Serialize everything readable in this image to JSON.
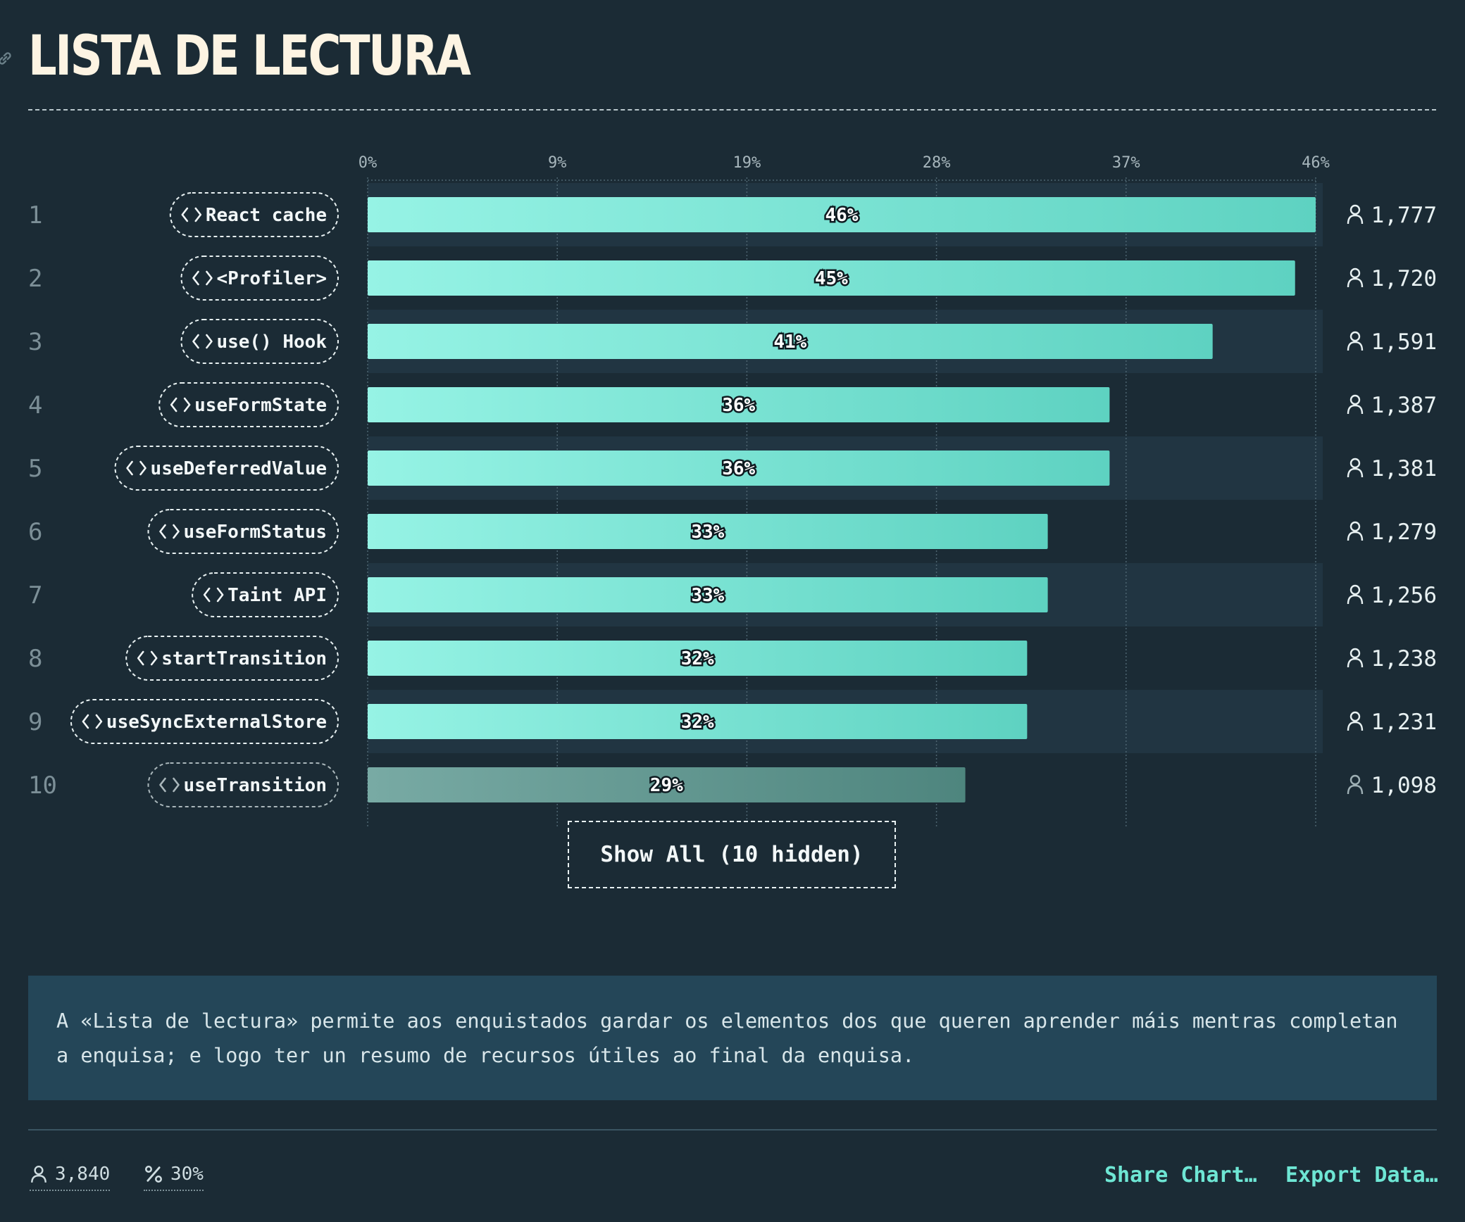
{
  "header": {
    "title": "LISTA DE LECTURA"
  },
  "chart_data": {
    "type": "bar",
    "orientation": "horizontal",
    "title": "LISTA DE LECTURA",
    "axis_ticks": [
      "0%",
      "9%",
      "19%",
      "28%",
      "37%",
      "46%"
    ],
    "xlim": [
      0,
      46
    ],
    "grid": true,
    "items": [
      {
        "rank": "1",
        "label": "React cache",
        "value": 46,
        "value_label": "46%",
        "count": "1,777"
      },
      {
        "rank": "2",
        "label": "<Profiler>",
        "value": 45,
        "value_label": "45%",
        "count": "1,720"
      },
      {
        "rank": "3",
        "label": "use() Hook",
        "value": 41,
        "value_label": "41%",
        "count": "1,591"
      },
      {
        "rank": "4",
        "label": "useFormState",
        "value": 36,
        "value_label": "36%",
        "count": "1,387"
      },
      {
        "rank": "5",
        "label": "useDeferredValue",
        "value": 36,
        "value_label": "36%",
        "count": "1,381"
      },
      {
        "rank": "6",
        "label": "useFormStatus",
        "value": 33,
        "value_label": "33%",
        "count": "1,279"
      },
      {
        "rank": "7",
        "label": "Taint API",
        "value": 33,
        "value_label": "33%",
        "count": "1,256"
      },
      {
        "rank": "8",
        "label": "startTransition",
        "value": 32,
        "value_label": "32%",
        "count": "1,238"
      },
      {
        "rank": "9",
        "label": "useSyncExternalStore",
        "value": 32,
        "value_label": "32%",
        "count": "1,231"
      },
      {
        "rank": "10",
        "label": "useTransition",
        "value": 29,
        "value_label": "29%",
        "count": "1,098"
      }
    ]
  },
  "show_all_label": "Show All (10 hidden)",
  "note": "A «Lista de lectura» permite aos enquistados gardar os elementos dos que queren aprender máis mentras completan a enquisa; e logo ter un resumo de recursos útiles ao final da enquisa.",
  "footer": {
    "respondents": "3,840",
    "percentage": "30%",
    "share_label": "Share Chart…",
    "export_label": "Export Data…"
  },
  "colors": {
    "background": "#1b2b35",
    "bar_start": "#96f3e5",
    "bar_end": "#5ed2c1",
    "faded_bar_start": "#78aaa4",
    "faded_bar_end": "#4e857e",
    "accent": "#6ee6d4",
    "note_background": "#244658"
  },
  "icons": {
    "title": "link-icon",
    "pill": "code-brackets-icon",
    "count": "user-icon",
    "percentage": "percent-icon"
  }
}
